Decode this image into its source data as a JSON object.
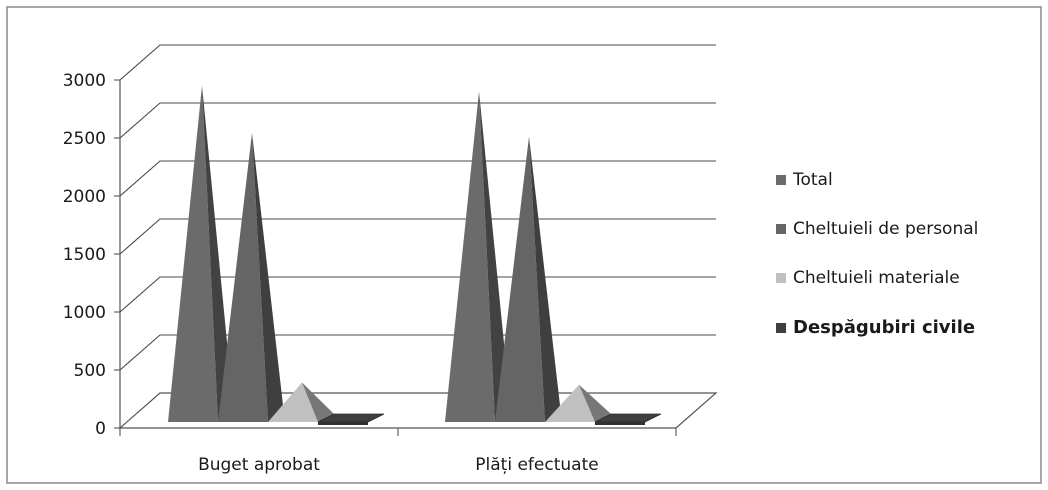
{
  "chart_data": {
    "type": "bar",
    "style": "3d-pyramid",
    "categories": [
      "Buget aprobat",
      "Plăți efectuate"
    ],
    "series": [
      {
        "name": "Total",
        "values": [
          2970,
          2920
        ],
        "color": "#6b6b6b"
      },
      {
        "name": "Cheltuieli de personal",
        "values": [
          2560,
          2530
        ],
        "color": "#656565"
      },
      {
        "name": "Cheltuieli materiale",
        "values": [
          410,
          390
        ],
        "color": "#c0c0c0"
      },
      {
        "name": "Despăgubiri civile",
        "values": [
          10,
          10
        ],
        "color": "#3f3f3f"
      }
    ],
    "y_ticks": [
      "0",
      "500",
      "1000",
      "1500",
      "2000",
      "2500",
      "3000"
    ],
    "ylim": [
      0,
      3000
    ],
    "grid": true,
    "legend_position": "right"
  }
}
